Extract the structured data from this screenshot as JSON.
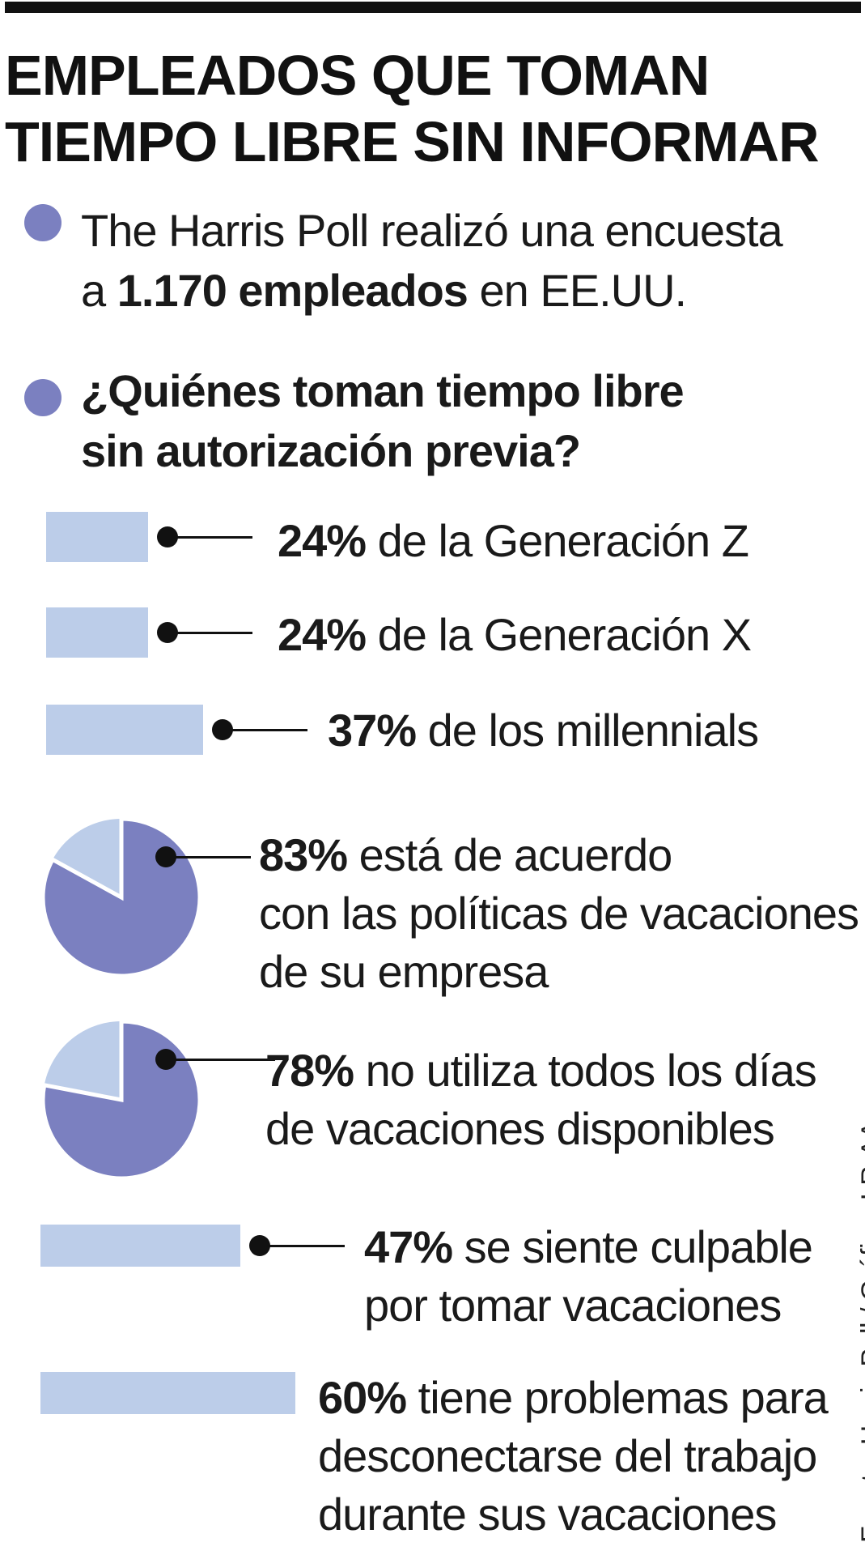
{
  "title": {
    "line1": "EMPLEADOS QUE TOMAN",
    "line2": "TIEMPO LIBRE SIN INFORMAR"
  },
  "intro": {
    "line1": "The Harris Poll realizó una encuesta",
    "line2_pre": "a ",
    "line2_bold": "1.170 empleados",
    "line2_post": " en EE.UU."
  },
  "question": {
    "line1": "¿Quiénes toman tiempo libre",
    "line2": "sin autorización previa?"
  },
  "colors": {
    "bar": "#bccde9",
    "pie_main": "#7b80c0",
    "pie_rest": "#bccde9",
    "bullet": "#7b80c0",
    "ink": "#111111"
  },
  "chart_data": {
    "type": "bar",
    "title": "EMPLEADOS QUE TOMAN TIEMPO LIBRE SIN INFORMAR",
    "unit": "%",
    "series": [
      {
        "id": "gen-z",
        "type": "bar",
        "value": 24,
        "value_label": "24%",
        "lines": [
          "de la Generación Z"
        ]
      },
      {
        "id": "gen-x",
        "type": "bar",
        "value": 24,
        "value_label": "24%",
        "lines": [
          "de la Generación X"
        ]
      },
      {
        "id": "millennials",
        "type": "bar",
        "value": 37,
        "value_label": "37%",
        "lines": [
          "de los millennials"
        ]
      },
      {
        "id": "acuerdo",
        "type": "pie",
        "value": 83,
        "value_label": "83%",
        "lines": [
          "está de acuerdo",
          "con las políticas de vacaciones",
          "de su empresa"
        ]
      },
      {
        "id": "no-utiliza",
        "type": "pie",
        "value": 78,
        "value_label": "78%",
        "lines": [
          "no utiliza todos los días",
          "de vacaciones disponibles"
        ]
      },
      {
        "id": "culpable",
        "type": "bar",
        "value": 47,
        "value_label": "47%",
        "lines": [
          "se siente culpable",
          "por tomar vacaciones"
        ]
      },
      {
        "id": "desconectar",
        "type": "bar",
        "value": 60,
        "value_label": "60%",
        "lines": [
          "tiene problemas para",
          "desconectarse del trabajo",
          "durante sus vacaciones"
        ]
      }
    ]
  },
  "source": "Fuente: Harris Poll / Gráfico: LR-AA"
}
